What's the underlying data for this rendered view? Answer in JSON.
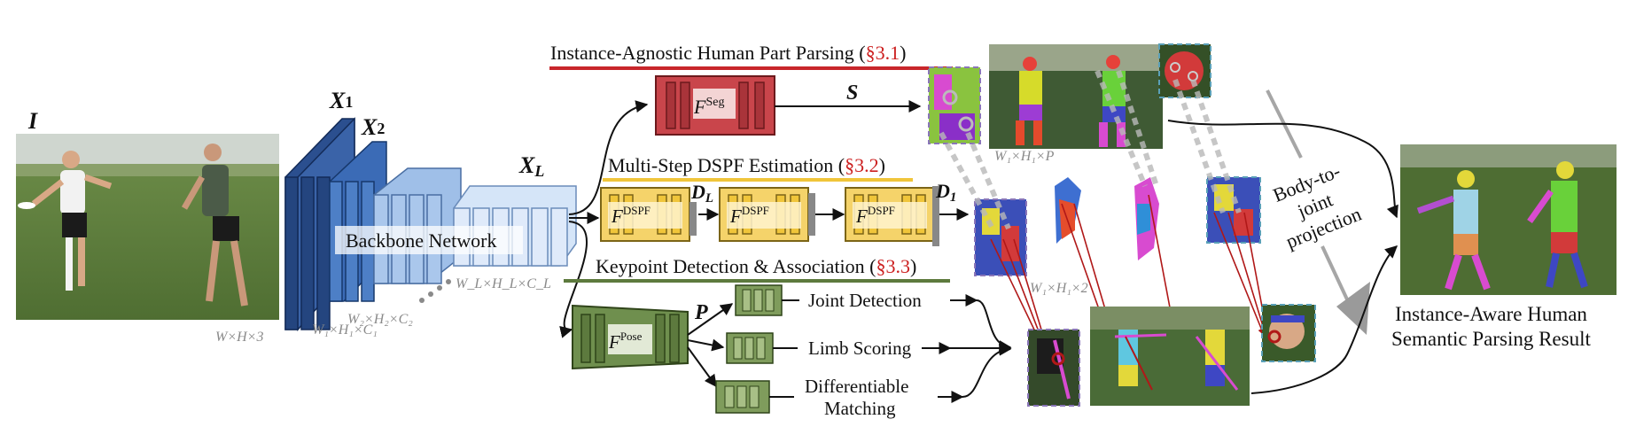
{
  "input": {
    "label": "I",
    "dims": "W×H×3"
  },
  "backbone": {
    "label": "Backbone Network",
    "x1": "X",
    "x1_sub": "1",
    "x2": "X",
    "x2_sub": "2",
    "xl": "X",
    "xl_sub": "L",
    "dims1": "W₁×H₁×C₁",
    "dims2": "W₂×H₂×C₂",
    "dimsL": "W_L×H_L×C_L"
  },
  "seg": {
    "title_pre": "Instance-Agnostic Human Part Parsing (",
    "title_ref": "§3.1",
    "title_post": ")",
    "module_base": "F",
    "module_sup": "Seg",
    "output": "S",
    "out_dims": "W₁×H₁×P"
  },
  "dspf": {
    "title_pre": "Multi-Step DSPF Estimation (",
    "title_ref": "§3.2",
    "title_post": ")",
    "module_base": "F",
    "module_sup": "DSPF",
    "d_first": "D",
    "d_first_sub": "L",
    "d_last": "D",
    "d_last_sub": "1",
    "out_dims": "W₁×H₁×2"
  },
  "pose": {
    "title_pre": "Keypoint Detection & Association (",
    "title_ref": "§3.3",
    "title_post": ")",
    "module_base": "F",
    "module_sup": "Pose",
    "output": "P",
    "branches": [
      "Joint Detection",
      "Limb Scoring",
      "Differentiable",
      "Matching"
    ]
  },
  "projection": {
    "lines": [
      "Body-to-",
      "joint",
      "projection"
    ]
  },
  "result": {
    "lines": [
      "Instance-Aware Human",
      "Semantic Parsing Result"
    ]
  },
  "colors": {
    "seg_accent": "#c8262b",
    "dspf_accent": "#f0c53a",
    "pose_accent": "#5d7a3e",
    "backbone_dark": "#2b4f8f",
    "backbone_light": "#c8dcf4",
    "reference": "#cc1f1f"
  }
}
